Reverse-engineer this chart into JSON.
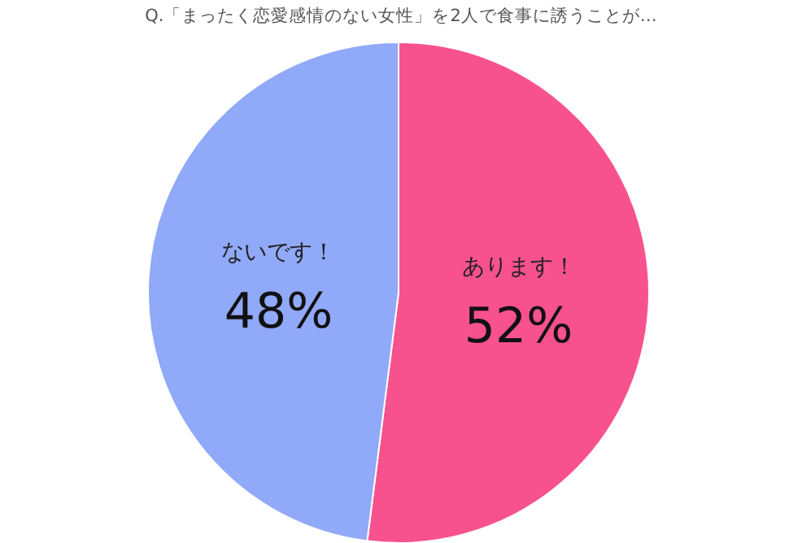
{
  "chart_data": {
    "type": "pie",
    "title": "Q.「まったく恋愛感情のない女性」を2人で食事に誘うことが…",
    "categories": [
      "あります！",
      "ないです！"
    ],
    "values": [
      52,
      48
    ],
    "colors": [
      "#f7528d",
      "#90a9f8"
    ],
    "value_labels": [
      "52%",
      "48%"
    ],
    "legend": false
  }
}
